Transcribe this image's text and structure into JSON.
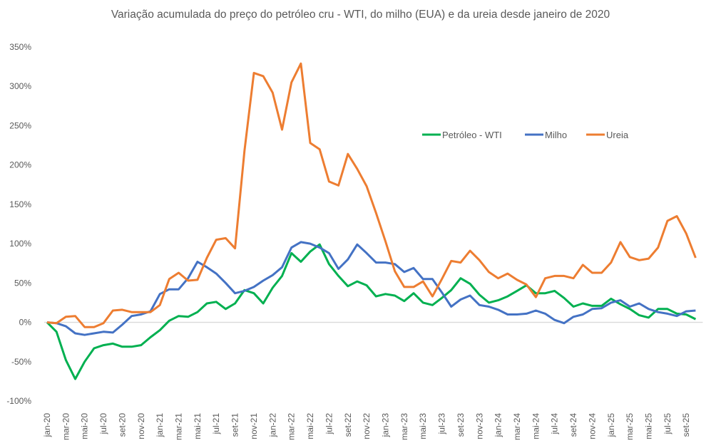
{
  "chart_data": {
    "type": "line",
    "title": "Variação acumulada do preço do petróleo cru - WTI, do milho (EUA) e da ureia desde janeiro de 2020",
    "xlabel": "",
    "ylabel": "",
    "ylim": [
      -100,
      350
    ],
    "yticks": [
      "-100%",
      "-50%",
      "0%",
      "50%",
      "100%",
      "150%",
      "200%",
      "250%",
      "300%",
      "350%"
    ],
    "grid": false,
    "legend": "top-right",
    "x": [
      "jan-20",
      "fev-20",
      "mar-20",
      "abr-20",
      "mai-20",
      "jun-20",
      "jul-20",
      "ago-20",
      "set-20",
      "out-20",
      "nov-20",
      "dez-20",
      "jan-21",
      "fev-21",
      "mar-21",
      "abr-21",
      "mai-21",
      "jun-21",
      "jul-21",
      "ago-21",
      "set-21",
      "out-21",
      "nov-21",
      "dez-21",
      "jan-22",
      "fev-22",
      "mar-22",
      "abr-22",
      "mai-22",
      "jun-22",
      "jul-22",
      "ago-22",
      "set-22",
      "out-22",
      "nov-22",
      "dez-22",
      "jan-23",
      "fev-23",
      "mar-23",
      "abr-23",
      "mai-23",
      "jun-23",
      "jul-23",
      "ago-23",
      "set-23",
      "out-23",
      "nov-23",
      "dez-23",
      "jan-24",
      "fev-24",
      "mar-24",
      "abr-24",
      "mai-24",
      "jun-24",
      "jul-24",
      "ago-24",
      "set-24",
      "out-24",
      "nov-24",
      "dez-24",
      "jan-25",
      "fev-25",
      "mar-25",
      "abr-25",
      "mai-25",
      "jun-25",
      "jul-25",
      "ago-25",
      "set-25",
      "out-25"
    ],
    "series": [
      {
        "name": "Petróleo - WTI",
        "color": "#00B050",
        "values": [
          0,
          -12,
          -48,
          -72,
          -50,
          -33,
          -29,
          -27,
          -31,
          -31,
          -29,
          -19,
          -10,
          2,
          8,
          7,
          13,
          24,
          26,
          17,
          24,
          41,
          37,
          24,
          44,
          59,
          88,
          77,
          90,
          99,
          74,
          59,
          46,
          52,
          47,
          33,
          36,
          34,
          27,
          37,
          25,
          22,
          31,
          41,
          56,
          49,
          35,
          25,
          28,
          33,
          40,
          47,
          37,
          37,
          40,
          31,
          20,
          24,
          21,
          21,
          30,
          23,
          17,
          9,
          6,
          17,
          17,
          11,
          10,
          4
        ]
      },
      {
        "name": "Milho",
        "color": "#4472C4",
        "values": [
          0,
          -1,
          -5,
          -14,
          -16,
          -14,
          -12,
          -13,
          -3,
          8,
          10,
          14,
          36,
          42,
          42,
          56,
          77,
          70,
          62,
          50,
          37,
          40,
          45,
          53,
          60,
          70,
          95,
          102,
          100,
          95,
          88,
          68,
          80,
          99,
          88,
          76,
          76,
          74,
          64,
          69,
          55,
          55,
          38,
          20,
          29,
          34,
          22,
          20,
          16,
          10,
          10,
          11,
          15,
          11,
          3,
          -1,
          7,
          10,
          17,
          18,
          25,
          28,
          20,
          24,
          17,
          13,
          11,
          8,
          14,
          15
        ]
      },
      {
        "name": "Ureia",
        "color": "#ED7D31",
        "values": [
          0,
          -1,
          7,
          8,
          -6,
          -6,
          -1,
          15,
          16,
          13,
          13,
          13,
          22,
          55,
          63,
          53,
          54,
          82,
          105,
          107,
          94,
          218,
          317,
          313,
          292,
          245,
          305,
          329,
          228,
          220,
          179,
          174,
          214,
          195,
          173,
          139,
          103,
          65,
          45,
          45,
          52,
          33,
          55,
          78,
          76,
          91,
          79,
          64,
          56,
          62,
          54,
          48,
          32,
          56,
          59,
          59,
          56,
          73,
          63,
          63,
          76,
          102,
          83,
          79,
          81,
          95,
          129,
          135,
          113,
          82
        ]
      }
    ]
  }
}
